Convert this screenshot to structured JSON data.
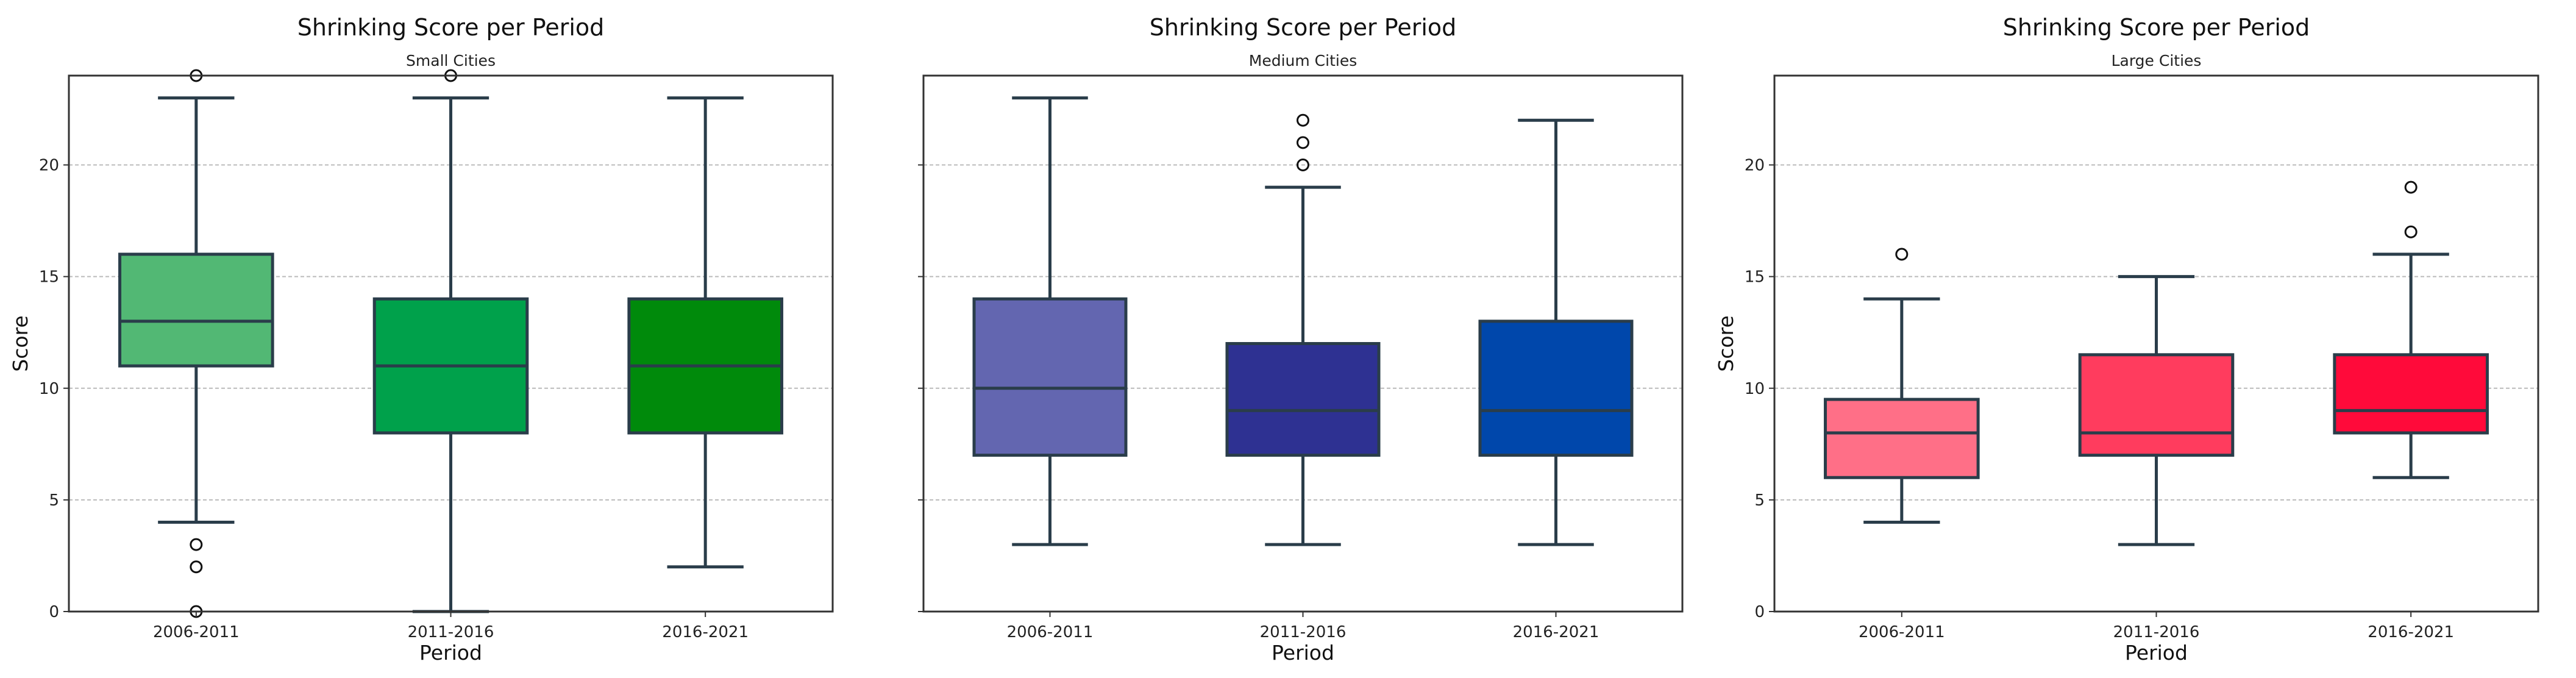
{
  "chart_data": [
    {
      "type": "box",
      "title": "Shrinking Score per Period",
      "subtitle": "Small Cities",
      "xlabel": "Period",
      "ylabel": "Score",
      "ylim": [
        0,
        24
      ],
      "yticks": [
        "0",
        "5",
        "10",
        "15",
        "20"
      ],
      "show_ytick_labels": true,
      "grid": "y dashed",
      "categories": [
        "2006-2011",
        "2011-2016",
        "2016-2021"
      ],
      "colors": [
        "#52b874",
        "#00a14b",
        "#008a0b"
      ],
      "boxes": [
        {
          "whisker_low": 4,
          "q1": 11,
          "median": 13,
          "q3": 16,
          "whisker_high": 23,
          "outliers": [
            24,
            3,
            2,
            0
          ]
        },
        {
          "whisker_low": 0,
          "q1": 8,
          "median": 11,
          "q3": 14,
          "whisker_high": 23,
          "outliers": [
            24
          ]
        },
        {
          "whisker_low": 2,
          "q1": 8,
          "median": 11,
          "q3": 14,
          "whisker_high": 23,
          "outliers": []
        }
      ]
    },
    {
      "type": "box",
      "title": "Shrinking Score per Period",
      "subtitle": "Medium Cities",
      "xlabel": "Period",
      "ylabel": "",
      "ylim": [
        0,
        24
      ],
      "yticks": [
        "0",
        "5",
        "10",
        "15",
        "20"
      ],
      "show_ytick_labels": false,
      "grid": "y dashed",
      "categories": [
        "2006-2011",
        "2011-2016",
        "2016-2021"
      ],
      "colors": [
        "#6366b0",
        "#2e3192",
        "#0047ab"
      ],
      "boxes": [
        {
          "whisker_low": 3,
          "q1": 7,
          "median": 10,
          "q3": 14,
          "whisker_high": 23,
          "outliers": []
        },
        {
          "whisker_low": 3,
          "q1": 7,
          "median": 9,
          "q3": 12,
          "whisker_high": 19,
          "outliers": [
            20,
            21,
            22
          ]
        },
        {
          "whisker_low": 3,
          "q1": 7,
          "median": 9,
          "q3": 13,
          "whisker_high": 22,
          "outliers": []
        }
      ]
    },
    {
      "type": "box",
      "title": "Shrinking Score per Period",
      "subtitle": "Large Cities",
      "xlabel": "Period",
      "ylabel": "Score",
      "ylim": [
        0,
        24
      ],
      "yticks": [
        "0",
        "5",
        "10",
        "15",
        "20"
      ],
      "show_ytick_labels": true,
      "grid": "y dashed",
      "categories": [
        "2006-2011",
        "2011-2016",
        "2016-2021"
      ],
      "colors": [
        "#ff6f87",
        "#ff3c5e",
        "#ff0a3a"
      ],
      "boxes": [
        {
          "whisker_low": 4,
          "q1": 6,
          "median": 8,
          "q3": 9.5,
          "whisker_high": 14,
          "outliers": [
            16
          ]
        },
        {
          "whisker_low": 3,
          "q1": 7,
          "median": 8,
          "q3": 11.5,
          "whisker_high": 15,
          "outliers": []
        },
        {
          "whisker_low": 6,
          "q1": 8,
          "median": 9,
          "q3": 11.5,
          "whisker_high": 16,
          "outliers": [
            17,
            19
          ]
        }
      ]
    }
  ],
  "style": {
    "line_color": "#2a3d4a",
    "grid_color": "#bbbbbb"
  }
}
